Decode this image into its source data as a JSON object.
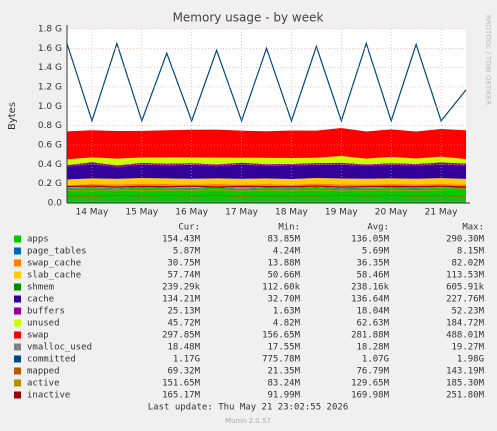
{
  "chart_data": {
    "type": "area",
    "title": "Memory usage - by week",
    "y_label": "Bytes",
    "side_text": "RRDTOOL / TOBI OETIKER",
    "categories": [
      null,
      "14 May",
      null,
      "15 May",
      null,
      "16 May",
      null,
      "17 May",
      null,
      "18 May",
      null,
      "19 May",
      null,
      "20 May",
      null,
      "21 May",
      null
    ],
    "ylim": [
      0,
      1800000000
    ],
    "yticks": [
      {
        "value": 0,
        "label": "0.0"
      },
      {
        "value": 200000000,
        "label": "0.2 G"
      },
      {
        "value": 400000000,
        "label": "0.4 G"
      },
      {
        "value": 600000000,
        "label": "0.6 G"
      },
      {
        "value": 800000000,
        "label": "0.8 G"
      },
      {
        "value": 1000000000,
        "label": "1.0 G"
      },
      {
        "value": 1200000000,
        "label": "1.2 G"
      },
      {
        "value": 1400000000,
        "label": "1.4 G"
      },
      {
        "value": 1600000000,
        "label": "1.6 G"
      },
      {
        "value": 1800000000,
        "label": "1.8 G"
      }
    ],
    "grid": true,
    "stat_headers": [
      "Cur:",
      "Min:",
      "Avg:",
      "Max:"
    ],
    "series": [
      {
        "name": "apps",
        "color": "#00CC00",
        "style": "area",
        "values": [
          150000000,
          155000000,
          148000000,
          160000000,
          152000000,
          150000000,
          158000000,
          145000000,
          155000000,
          150000000,
          160000000,
          148000000,
          152000000,
          155000000,
          150000000,
          158000000,
          154000000
        ],
        "stats": [
          "154.43M",
          "83.85M",
          "136.05M",
          "290.30M"
        ]
      },
      {
        "name": "page_tables",
        "color": "#0066B3",
        "style": "area",
        "values": [
          5000000,
          6000000,
          5000000,
          6000000,
          6000000,
          5000000,
          6000000,
          5000000,
          6000000,
          6000000,
          5000000,
          6000000,
          5000000,
          6000000,
          6000000,
          5000000,
          6000000
        ],
        "stats": [
          "5.87M",
          "4.24M",
          "5.69M",
          "8.15M"
        ]
      },
      {
        "name": "swap_cache",
        "color": "#FF8000",
        "style": "area",
        "values": [
          30000000,
          35000000,
          40000000,
          32000000,
          38000000,
          36000000,
          34000000,
          40000000,
          35000000,
          33000000,
          37000000,
          39000000,
          36000000,
          35000000,
          38000000,
          34000000,
          31000000
        ],
        "stats": [
          "30.75M",
          "13.88M",
          "36.35M",
          "82.02M"
        ]
      },
      {
        "name": "slab_cache",
        "color": "#FFCC00",
        "style": "area",
        "values": [
          58000000,
          59000000,
          57000000,
          60000000,
          58000000,
          59000000,
          57000000,
          60000000,
          58000000,
          59000000,
          57000000,
          60000000,
          58000000,
          59000000,
          57000000,
          60000000,
          58000000
        ],
        "stats": [
          "57.74M",
          "50.66M",
          "58.46M",
          "113.53M"
        ]
      },
      {
        "name": "shmem",
        "color": "#008F00",
        "style": "area",
        "values": [
          240000,
          240000,
          240000,
          240000,
          240000,
          240000,
          240000,
          240000,
          240000,
          240000,
          240000,
          240000,
          240000,
          240000,
          240000,
          240000,
          240000
        ],
        "stats": [
          "239.29k",
          "112.60k",
          "238.16k",
          "605.91k"
        ]
      },
      {
        "name": "cache",
        "color": "#330099",
        "style": "area",
        "values": [
          130000000,
          150000000,
          120000000,
          140000000,
          135000000,
          145000000,
          125000000,
          150000000,
          130000000,
          140000000,
          135000000,
          145000000,
          130000000,
          140000000,
          135000000,
          145000000,
          134000000
        ],
        "stats": [
          "134.21M",
          "32.70M",
          "136.64M",
          "227.76M"
        ]
      },
      {
        "name": "buffers",
        "color": "#990099",
        "style": "area",
        "values": [
          18000000,
          17000000,
          19000000,
          18000000,
          18000000,
          17000000,
          19000000,
          18000000,
          18000000,
          17000000,
          19000000,
          18000000,
          18000000,
          17000000,
          19000000,
          18000000,
          25000000
        ],
        "stats": [
          "25.13M",
          "1.63M",
          "18.04M",
          "52.23M"
        ]
      },
      {
        "name": "unused",
        "color": "#CCFF00",
        "style": "area",
        "values": [
          60000000,
          50000000,
          70000000,
          55000000,
          65000000,
          60000000,
          70000000,
          50000000,
          65000000,
          60000000,
          55000000,
          70000000,
          60000000,
          65000000,
          55000000,
          60000000,
          46000000
        ],
        "stats": [
          "45.72M",
          "4.82M",
          "62.63M",
          "184.72M"
        ]
      },
      {
        "name": "swap",
        "color": "#FF0000",
        "style": "area",
        "values": [
          290000000,
          280000000,
          285000000,
          275000000,
          280000000,
          285000000,
          290000000,
          280000000,
          275000000,
          285000000,
          280000000,
          290000000,
          280000000,
          285000000,
          280000000,
          285000000,
          298000000
        ],
        "stats": [
          "297.85M",
          "156.65M",
          "281.88M",
          "488.01M"
        ]
      },
      {
        "name": "vmalloc_used",
        "color": "#808080",
        "style": "line",
        "values": [
          18000000,
          18000000,
          18000000,
          18000000,
          18000000,
          18000000,
          18000000,
          18000000,
          18000000,
          18000000,
          18000000,
          18000000,
          18000000,
          18000000,
          18000000,
          18000000,
          18000000
        ],
        "stats": [
          "18.48M",
          "17.55M",
          "18.28M",
          "19.27M"
        ]
      },
      {
        "name": "committed",
        "color": "#00487D",
        "style": "line",
        "values": [
          1650000000,
          850000000,
          1650000000,
          850000000,
          1550000000,
          850000000,
          1580000000,
          850000000,
          1600000000,
          850000000,
          1620000000,
          850000000,
          1650000000,
          850000000,
          1640000000,
          850000000,
          1170000000
        ],
        "stats": [
          "1.17G",
          "775.78M",
          "1.07G",
          "1.98G"
        ]
      },
      {
        "name": "mapped",
        "color": "#B35A00",
        "style": "line",
        "values": [
          75000000,
          70000000,
          80000000,
          72000000,
          78000000,
          74000000,
          80000000,
          70000000,
          76000000,
          75000000,
          72000000,
          80000000,
          74000000,
          78000000,
          72000000,
          76000000,
          69000000
        ],
        "stats": [
          "69.32M",
          "21.35M",
          "76.79M",
          "143.19M"
        ]
      },
      {
        "name": "active",
        "color": "#B38F00",
        "style": "line",
        "values": [
          130000000,
          125000000,
          135000000,
          128000000,
          132000000,
          130000000,
          136000000,
          124000000,
          130000000,
          128000000,
          134000000,
          126000000,
          130000000,
          132000000,
          128000000,
          134000000,
          152000000
        ],
        "stats": [
          "151.65M",
          "83.24M",
          "129.65M",
          "185.30M"
        ]
      },
      {
        "name": "inactive",
        "color": "#990000",
        "style": "line",
        "values": [
          170000000,
          175000000,
          165000000,
          172000000,
          168000000,
          174000000,
          166000000,
          172000000,
          170000000,
          168000000,
          175000000,
          165000000,
          170000000,
          172000000,
          168000000,
          174000000,
          165000000
        ],
        "stats": [
          "165.17M",
          "91.99M",
          "169.98M",
          "251.80M"
        ]
      }
    ],
    "last_update": "Last update: Thu May 21 23:02:55 2026",
    "footer": "Munin 2.0.57"
  }
}
